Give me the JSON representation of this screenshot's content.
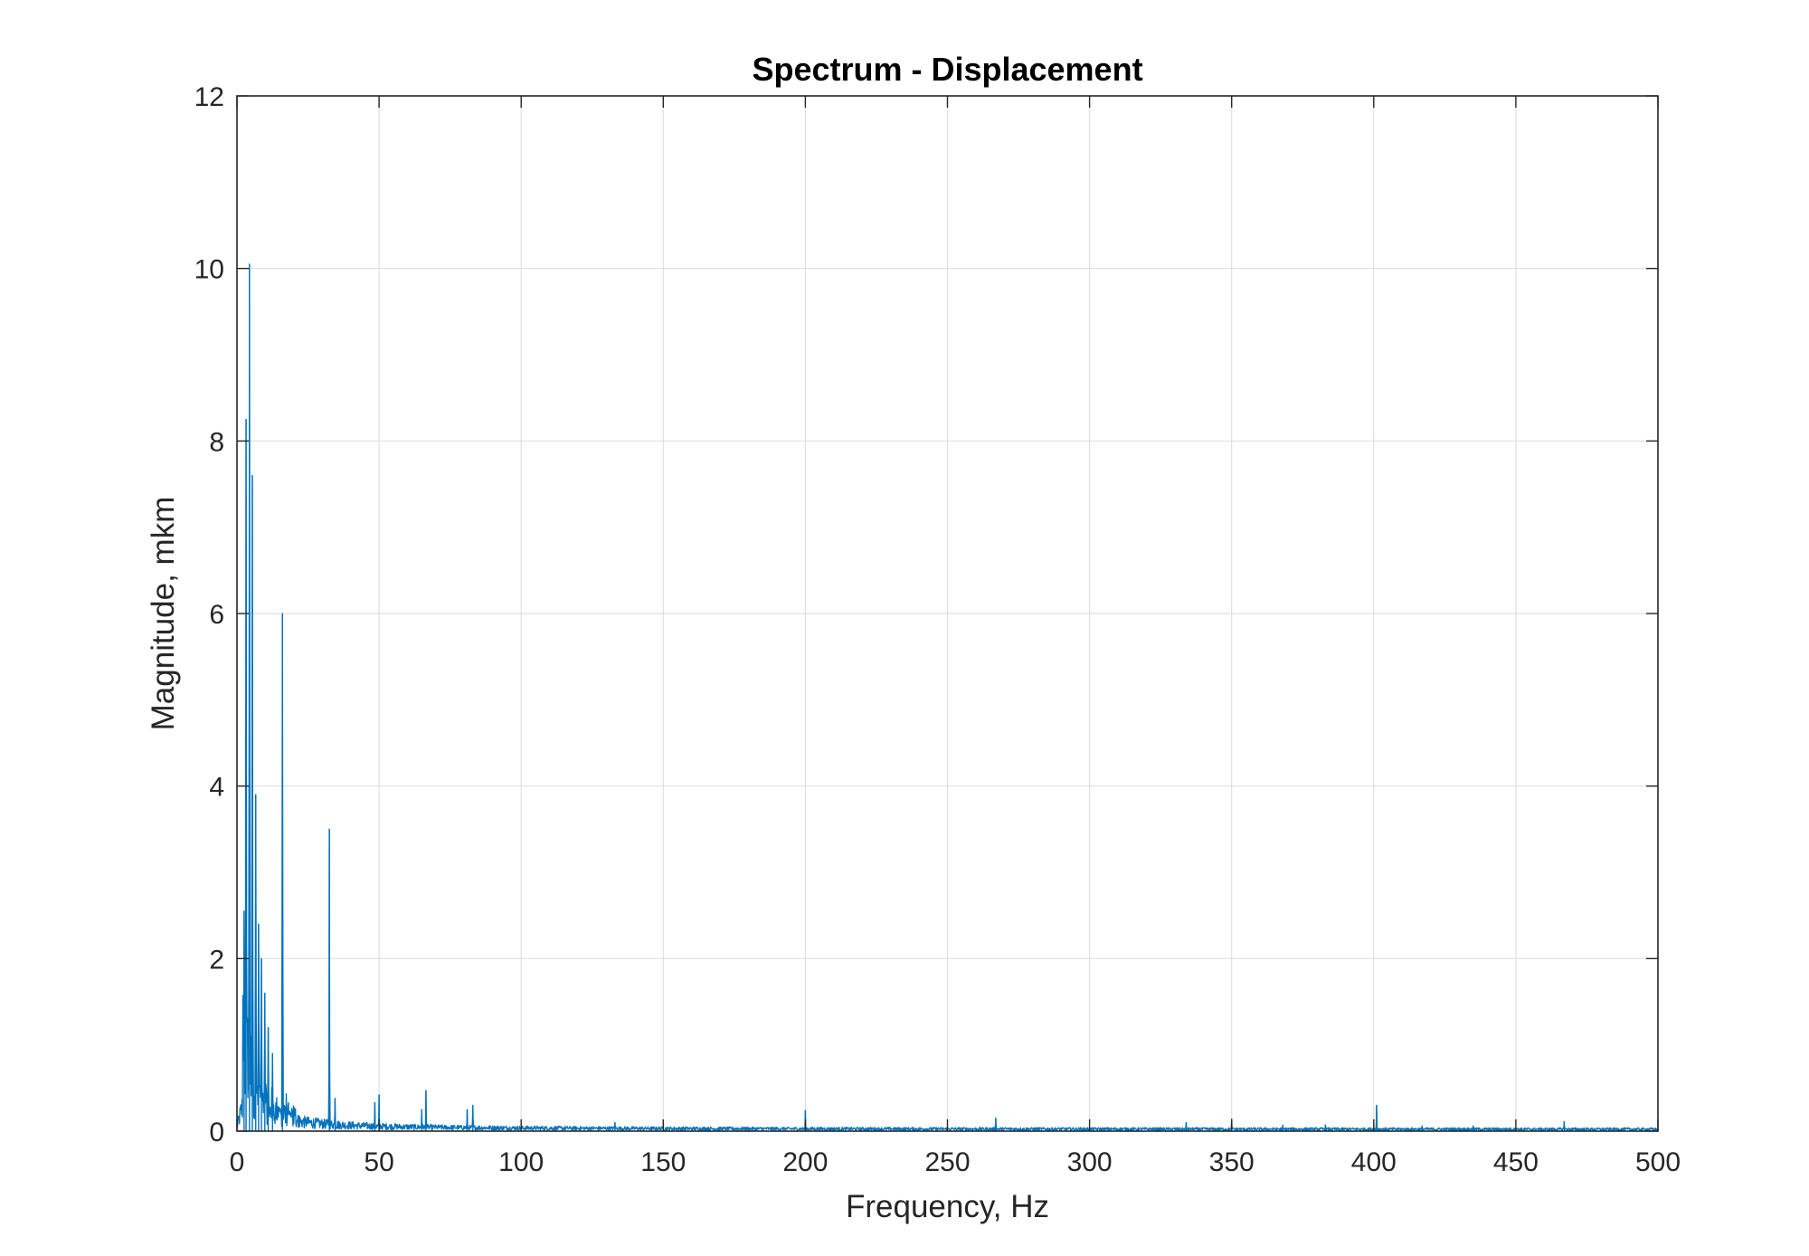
{
  "chart_data": {
    "type": "line",
    "title": "Spectrum - Displacement",
    "xlabel": "Frequency, Hz",
    "ylabel": "Magnitude, mkm",
    "xlim": [
      0,
      500
    ],
    "ylim": [
      0,
      12
    ],
    "xticks": [
      0,
      50,
      100,
      150,
      200,
      250,
      300,
      350,
      400,
      450,
      500
    ],
    "yticks": [
      0,
      2,
      4,
      6,
      8,
      10,
      12
    ],
    "grid": true,
    "line_color": "#0072BD",
    "peaks": [
      {
        "x": 2.5,
        "y": 2.55
      },
      {
        "x": 3.2,
        "y": 8.25
      },
      {
        "x": 4.4,
        "y": 10.05
      },
      {
        "x": 5.4,
        "y": 7.6
      },
      {
        "x": 6.6,
        "y": 3.9
      },
      {
        "x": 7.6,
        "y": 2.4
      },
      {
        "x": 8.6,
        "y": 2.0
      },
      {
        "x": 9.8,
        "y": 1.6
      },
      {
        "x": 11.0,
        "y": 1.2
      },
      {
        "x": 12.5,
        "y": 0.9
      },
      {
        "x": 16.0,
        "y": 6.0
      },
      {
        "x": 32.5,
        "y": 3.5
      },
      {
        "x": 34.5,
        "y": 0.38
      },
      {
        "x": 48.5,
        "y": 0.33
      },
      {
        "x": 50.0,
        "y": 0.42
      },
      {
        "x": 65.0,
        "y": 0.25
      },
      {
        "x": 66.5,
        "y": 0.47
      },
      {
        "x": 81.0,
        "y": 0.25
      },
      {
        "x": 83.0,
        "y": 0.3
      },
      {
        "x": 133.0,
        "y": 0.1
      },
      {
        "x": 200.0,
        "y": 0.24
      },
      {
        "x": 267.0,
        "y": 0.15
      },
      {
        "x": 334.0,
        "y": 0.1
      },
      {
        "x": 350.0,
        "y": 0.14
      },
      {
        "x": 368.0,
        "y": 0.07
      },
      {
        "x": 383.0,
        "y": 0.07
      },
      {
        "x": 401.0,
        "y": 0.3
      },
      {
        "x": 417.0,
        "y": 0.06
      },
      {
        "x": 435.0,
        "y": 0.06
      },
      {
        "x": 467.0,
        "y": 0.11
      }
    ]
  }
}
